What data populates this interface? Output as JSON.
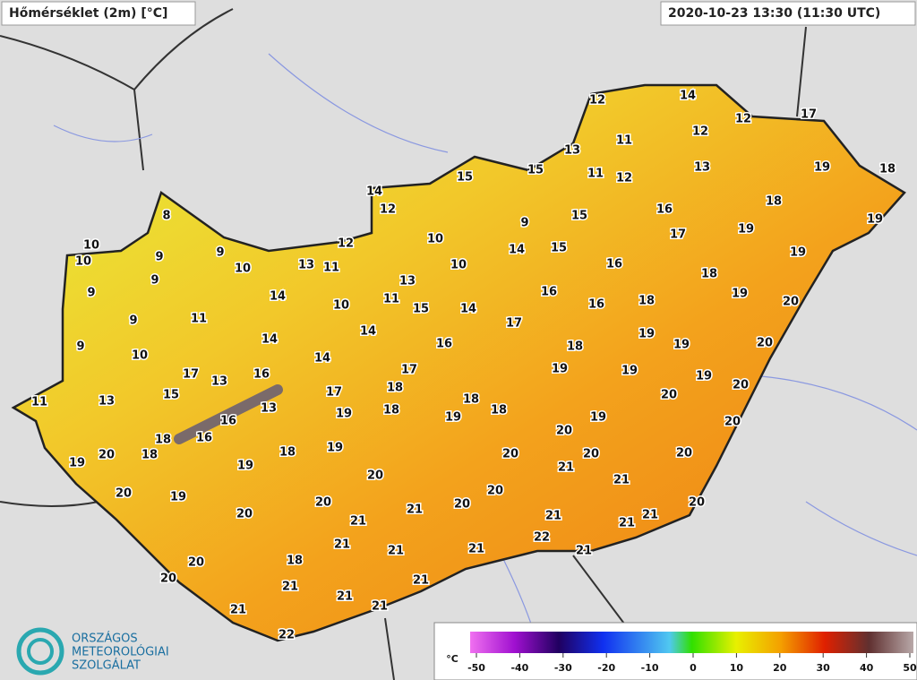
{
  "header": {
    "title": "Hőmérséklet (2m) [°C]",
    "timestamp": "2020-10-23 13:30 (11:30 UTC)"
  },
  "stations": [
    12,
    14,
    17,
    12,
    12,
    11,
    13,
    19,
    18,
    13,
    15,
    11,
    12,
    15,
    14,
    12,
    8,
    18,
    16,
    15,
    9,
    19,
    17,
    19,
    10,
    10,
    9,
    9,
    12,
    10,
    14,
    15,
    19,
    10,
    13,
    11,
    10,
    16,
    9,
    9,
    13,
    18,
    14,
    10,
    11,
    15,
    16,
    18,
    19,
    20,
    16,
    14,
    11,
    9,
    17,
    14,
    14,
    19,
    9,
    18,
    16,
    19,
    20,
    10,
    14,
    17,
    13,
    16,
    17,
    19,
    19,
    19,
    20,
    11,
    13,
    15,
    17,
    18,
    20,
    18,
    13,
    16,
    19,
    18,
    19,
    18,
    19,
    20,
    18,
    16,
    20,
    20,
    18,
    19,
    18,
    19,
    19,
    20,
    20,
    20,
    21,
    20,
    21,
    20,
    19,
    20,
    20,
    20,
    20,
    21,
    20,
    21,
    21,
    21,
    21,
    22,
    21,
    21,
    21,
    21,
    18,
    20,
    20,
    21,
    21,
    21,
    21,
    21,
    22
  ],
  "legend": {
    "unit": "°C",
    "ticks": [
      -50,
      -40,
      -30,
      -20,
      -10,
      0,
      10,
      20,
      30,
      40,
      50
    ]
  },
  "logo": {
    "lines": [
      "ORSZÁGOS",
      "METEOROLÓGIAI",
      "SZOLGÁLAT"
    ]
  }
}
